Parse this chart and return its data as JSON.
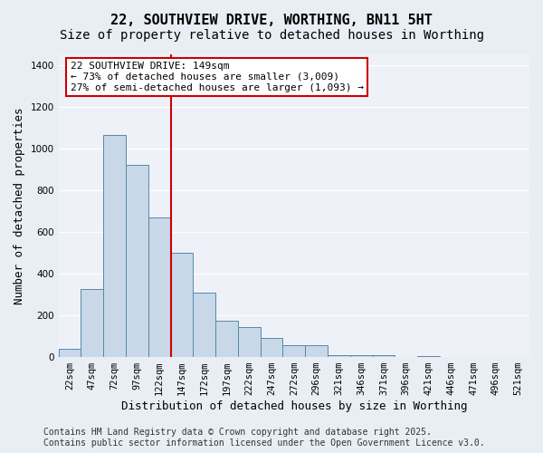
{
  "title": "22, SOUTHVIEW DRIVE, WORTHING, BN11 5HT",
  "subtitle": "Size of property relative to detached houses in Worthing",
  "xlabel": "Distribution of detached houses by size in Worthing",
  "ylabel": "Number of detached properties",
  "bins": [
    "22sqm",
    "47sqm",
    "72sqm",
    "97sqm",
    "122sqm",
    "147sqm",
    "172sqm",
    "197sqm",
    "222sqm",
    "247sqm",
    "272sqm",
    "296sqm",
    "321sqm",
    "346sqm",
    "371sqm",
    "396sqm",
    "421sqm",
    "446sqm",
    "471sqm",
    "496sqm",
    "521sqm"
  ],
  "bar_values": [
    40,
    325,
    1065,
    920,
    670,
    500,
    310,
    175,
    145,
    90,
    55,
    55,
    10,
    8,
    10,
    0,
    5,
    0,
    0,
    0,
    0
  ],
  "bar_color": "#c8d8e8",
  "bar_edge_color": "#5588aa",
  "vline_color": "#cc0000",
  "annotation_text": "22 SOUTHVIEW DRIVE: 149sqm\n← 73% of detached houses are smaller (3,009)\n27% of semi-detached houses are larger (1,093) →",
  "annotation_box_color": "#ffffff",
  "annotation_box_edge_color": "#cc0000",
  "ylim": [
    0,
    1450
  ],
  "yticks": [
    0,
    200,
    400,
    600,
    800,
    1000,
    1200,
    1400
  ],
  "footer_line1": "Contains HM Land Registry data © Crown copyright and database right 2025.",
  "footer_line2": "Contains public sector information licensed under the Open Government Licence v3.0.",
  "bg_color": "#e8eef4",
  "plot_bg_color": "#eef2f8",
  "grid_color": "#ffffff",
  "title_fontsize": 11,
  "subtitle_fontsize": 10,
  "axis_label_fontsize": 9,
  "tick_fontsize": 7.5,
  "footer_fontsize": 7,
  "annotation_fontsize": 8
}
